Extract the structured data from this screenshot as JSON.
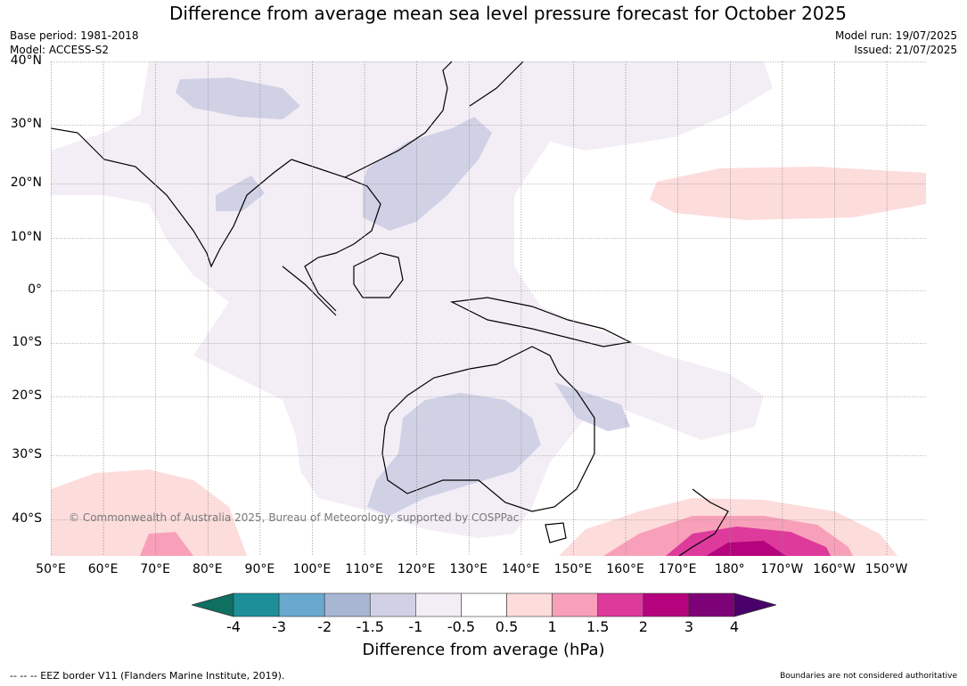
{
  "title": "Difference from average mean sea level pressure forecast for October 2025",
  "meta": {
    "base_period": "Base period: 1981-2018",
    "model": "Model: ACCESS-S2",
    "model_run": "Model run: 19/07/2025",
    "issued": "Issued: 21/07/2025"
  },
  "axes": {
    "lat_labels": [
      "40°N",
      "30°N",
      "20°N",
      "10°N",
      "0°",
      "10°S",
      "20°S",
      "30°S",
      "40°S"
    ],
    "lon_labels": [
      "50°E",
      "60°E",
      "70°E",
      "80°E",
      "90°E",
      "100°E",
      "110°E",
      "120°E",
      "130°E",
      "140°E",
      "150°E",
      "160°E",
      "170°E",
      "180°",
      "170°W",
      "160°W",
      "150°W"
    ]
  },
  "colorbar": {
    "ticks": [
      "-4",
      "-3",
      "-2",
      "-1.5",
      "-1",
      "-0.5",
      "0.5",
      "1",
      "1.5",
      "2",
      "3",
      "4"
    ],
    "colors": [
      "#0f6f60",
      "#1c8f99",
      "#69a9d0",
      "#a8b6d4",
      "#d1d1e6",
      "#f3eef6",
      "#ffffff",
      "#fddcdc",
      "#f8a0b9",
      "#de3a9c",
      "#b5047e",
      "#7e0277",
      "#4a006a"
    ],
    "label": "Difference from average (hPa)"
  },
  "copyright": "© Commonwealth of Australia 2025, Bureau of Meteorology, supported by COSPPac",
  "footer": {
    "eez": "--  --  -- EEZ border V11 (Flanders Marine Institute, 2019).",
    "disclaimer": "Boundaries are not considered authoritative"
  }
}
